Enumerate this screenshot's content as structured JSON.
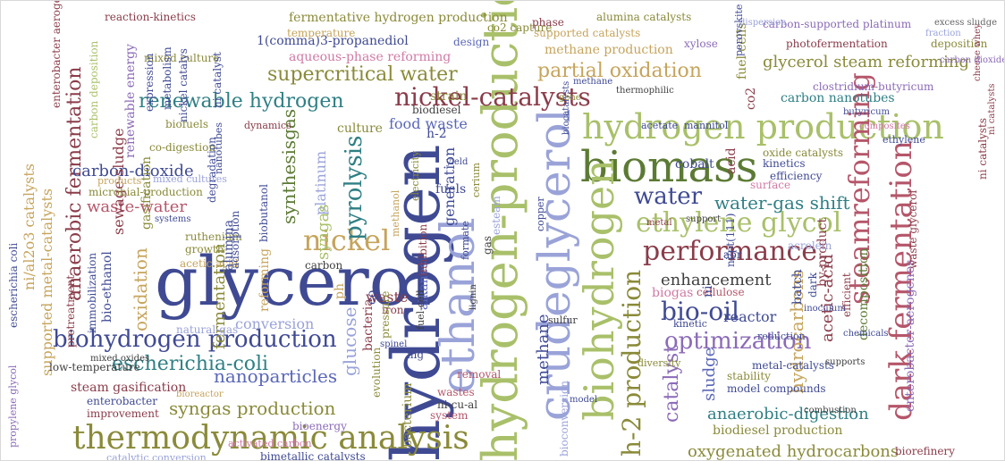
{
  "colors": {
    "navy": "#3f4a93",
    "blue": "#5a67b8",
    "teal": "#2f7f84",
    "olive": "#8a8a3a",
    "lime": "#a9c06a",
    "green": "#5c7a34",
    "maroon": "#8a3c4a",
    "red": "#b5566a",
    "pink": "#d07aa4",
    "purple": "#8b6bb7",
    "lavender": "#9aa3d8",
    "tan": "#c6a45c",
    "gray": "#666666",
    "darkgray": "#3f3f3f"
  },
  "words": [
    {
      "text": "glycerol",
      "color": "navy"
    },
    {
      "text": "hydrogen",
      "color": "navy"
    },
    {
      "text": "hydrogen-production",
      "color": "lime"
    },
    {
      "text": "biomass",
      "color": "green"
    },
    {
      "text": "ethanol",
      "color": "lavender"
    },
    {
      "text": "crudeglycerol",
      "color": "lavender"
    },
    {
      "text": "biohydrogen",
      "color": "lime"
    },
    {
      "text": "thermodynamic analysis",
      "color": "olive"
    },
    {
      "text": "hydrogen production",
      "color": "lime"
    },
    {
      "text": "nickel-catalysts",
      "color": "maroon"
    },
    {
      "text": "performance",
      "color": "maroon"
    },
    {
      "text": "ethylene glycol",
      "color": "lime"
    },
    {
      "text": "dark fermentation",
      "color": "red"
    },
    {
      "text": "steamreforming",
      "color": "red"
    },
    {
      "text": "biohydrogen production",
      "color": "navy"
    },
    {
      "text": "optimization",
      "color": "purple"
    },
    {
      "text": "bio-oil",
      "color": "navy"
    },
    {
      "text": "h-2 production",
      "color": "olive"
    },
    {
      "text": "nickel",
      "color": "tan"
    },
    {
      "text": "water",
      "color": "navy"
    },
    {
      "text": "catalyst",
      "color": "purple"
    },
    {
      "text": "escherichia-coli",
      "color": "teal"
    },
    {
      "text": "supercritical water",
      "color": "olive"
    },
    {
      "text": "renewable hydrogen",
      "color": "teal"
    },
    {
      "text": "partial oxidation",
      "color": "tan"
    },
    {
      "text": "anaerobic fermentation",
      "color": "maroon"
    },
    {
      "text": "water-gas shift",
      "color": "teal"
    },
    {
      "text": "syngas production",
      "color": "olive"
    },
    {
      "text": "nanoparticles",
      "color": "blue"
    },
    {
      "text": "glycerol steam reforming",
      "color": "olive"
    },
    {
      "text": "pyrolysis",
      "color": "teal"
    },
    {
      "text": "anaerobic-digestion",
      "color": "teal"
    },
    {
      "text": "oxygenated hydrocarbons",
      "color": "olive"
    },
    {
      "text": "enhancement",
      "color": "darkgray"
    },
    {
      "text": "carbon-dioxide",
      "color": "navy"
    },
    {
      "text": "waste-water",
      "color": "red"
    },
    {
      "text": "conversion",
      "color": "lavender"
    },
    {
      "text": "food waste",
      "color": "blue"
    },
    {
      "text": "synthesisgas",
      "color": "green"
    },
    {
      "text": "glucose",
      "color": "lavender"
    },
    {
      "text": "hydrocarbons",
      "color": "tan"
    },
    {
      "text": "methane",
      "color": "navy"
    },
    {
      "text": "sludge",
      "color": "blue"
    },
    {
      "text": "acetic-acid",
      "color": "maroon"
    },
    {
      "text": "biogas",
      "color": "pink"
    },
    {
      "text": "reactor",
      "color": "navy"
    },
    {
      "text": "biodiesel production",
      "color": "olive"
    },
    {
      "text": "steam gasification",
      "color": "maroon"
    },
    {
      "text": "carbon nanotubes",
      "color": "teal"
    },
    {
      "text": "methane production",
      "color": "tan"
    },
    {
      "text": "aqueous-phase reforming",
      "color": "pink"
    },
    {
      "text": "1(comma)3-propanediol",
      "color": "navy"
    },
    {
      "text": "supported metal-catalysts",
      "color": "tan"
    },
    {
      "text": "oxidation",
      "color": "tan"
    },
    {
      "text": "fermentation",
      "color": "olive"
    },
    {
      "text": "enterobacter-aerogenes",
      "color": "purple"
    },
    {
      "text": "decomposition",
      "color": "green"
    },
    {
      "text": "platinum",
      "color": "lavender"
    },
    {
      "text": "syngas",
      "color": "lime"
    },
    {
      "text": "sewage-sludge",
      "color": "maroon"
    },
    {
      "text": "renewable energy",
      "color": "purple"
    },
    {
      "text": "ni/al2o3 catalysts",
      "color": "tan"
    },
    {
      "text": "bio-ethanol",
      "color": "navy"
    },
    {
      "text": "reforming",
      "color": "tan"
    },
    {
      "text": "alkanes",
      "color": "blue"
    },
    {
      "text": "generation",
      "color": "navy"
    },
    {
      "text": "cobalt",
      "color": "navy"
    },
    {
      "text": "kinetics",
      "color": "navy"
    },
    {
      "text": "fuels",
      "color": "navy"
    },
    {
      "text": "waste",
      "color": "maroon"
    },
    {
      "text": "biodiesel",
      "color": "darkgray"
    },
    {
      "text": "strain",
      "color": "olive"
    },
    {
      "text": "culture",
      "color": "olive"
    },
    {
      "text": "oxide catalysts",
      "color": "olive"
    },
    {
      "text": "metal-catalysts",
      "color": "navy"
    },
    {
      "text": "model compounds",
      "color": "navy"
    },
    {
      "text": "bimetallic catalysts",
      "color": "navy"
    },
    {
      "text": "carbon-supported platinum",
      "color": "purple"
    },
    {
      "text": "supported catalysts",
      "color": "tan"
    },
    {
      "text": "alumina catalysts",
      "color": "olive"
    },
    {
      "text": "co2 capture",
      "color": "olive"
    },
    {
      "text": "photofermentation",
      "color": "maroon"
    },
    {
      "text": "microbial-production",
      "color": "olive"
    },
    {
      "text": "acetic acid",
      "color": "tan"
    },
    {
      "text": "fuel cells",
      "color": "olive"
    },
    {
      "text": "waste glycerol",
      "color": "maroon"
    },
    {
      "text": "biobutanol",
      "color": "navy"
    },
    {
      "text": "escherichia coli",
      "color": "navy"
    },
    {
      "text": "ruthenium",
      "color": "olive"
    },
    {
      "text": "growth",
      "color": "olive"
    },
    {
      "text": "adsorption",
      "color": "navy"
    },
    {
      "text": "co-digestion",
      "color": "olive"
    },
    {
      "text": "biofuels",
      "color": "olive"
    },
    {
      "text": "wastes",
      "color": "red"
    },
    {
      "text": "system",
      "color": "red"
    },
    {
      "text": "improvement",
      "color": "maroon"
    },
    {
      "text": "enterobacter",
      "color": "navy"
    },
    {
      "text": "low-temperature",
      "color": "darkgray"
    },
    {
      "text": "cellulose",
      "color": "red"
    },
    {
      "text": "mixed culture",
      "color": "olive"
    },
    {
      "text": "efficiency",
      "color": "navy"
    },
    {
      "text": "by-product",
      "color": "maroon"
    },
    {
      "text": "acrolein",
      "color": "lavender"
    },
    {
      "text": "batch",
      "color": "navy"
    },
    {
      "text": "bioenergy",
      "color": "purple"
    },
    {
      "text": "bacterium",
      "color": "olive"
    },
    {
      "text": "bacteria",
      "color": "maroon"
    },
    {
      "text": "ni-cu-al",
      "color": "darkgray"
    },
    {
      "text": "stability",
      "color": "olive"
    },
    {
      "text": "alumina",
      "color": "navy"
    },
    {
      "text": "immobilization",
      "color": "navy"
    },
    {
      "text": "pretreatment",
      "color": "maroon"
    },
    {
      "text": "gasification",
      "color": "olive"
    },
    {
      "text": "ni catalyst",
      "color": "navy"
    },
    {
      "text": "degradation",
      "color": "navy"
    },
    {
      "text": "nickel catalys",
      "color": "navy"
    },
    {
      "text": "metabolism",
      "color": "navy"
    },
    {
      "text": "expression",
      "color": "navy"
    },
    {
      "text": "carbon deposition",
      "color": "lime"
    },
    {
      "text": "enterobacter aerogenes",
      "color": "maroon"
    },
    {
      "text": "clostridium-butyricum",
      "color": "purple"
    },
    {
      "text": "xylose",
      "color": "purple"
    },
    {
      "text": "deposition",
      "color": "olive"
    },
    {
      "text": "excess sludge",
      "color": "gray"
    },
    {
      "text": "reaction-kinetics",
      "color": "maroon"
    },
    {
      "text": "phase",
      "color": "maroon"
    },
    {
      "text": "design",
      "color": "blue"
    },
    {
      "text": "h-2",
      "color": "navy"
    },
    {
      "text": "acid",
      "color": "maroon"
    },
    {
      "text": "co2",
      "color": "maroon"
    },
    {
      "text": "surface",
      "color": "pink"
    },
    {
      "text": "ni",
      "color": "navy"
    },
    {
      "text": "co",
      "color": "navy"
    },
    {
      "text": "gas",
      "color": "darkgray"
    },
    {
      "text": "carbon",
      "color": "darkgray"
    },
    {
      "text": "iron",
      "color": "maroon"
    },
    {
      "text": "mg",
      "color": "navy"
    },
    {
      "text": "ph",
      "color": "tan"
    },
    {
      "text": "apr",
      "color": "navy"
    },
    {
      "text": "inhibition",
      "color": "maroon"
    },
    {
      "text": "evolution",
      "color": "olive"
    },
    {
      "text": "pressure",
      "color": "olive"
    },
    {
      "text": "temperature",
      "color": "tan"
    },
    {
      "text": "natural-gas",
      "color": "lavender"
    },
    {
      "text": "removal",
      "color": "red"
    },
    {
      "text": "ni catalysts",
      "color": "maroon"
    },
    {
      "text": "propylene glycol",
      "color": "purple"
    },
    {
      "text": "nanotubes",
      "color": "navy"
    },
    {
      "text": "catalytic conversion",
      "color": "lavender"
    },
    {
      "text": "activated carbon",
      "color": "pink"
    },
    {
      "text": "ni/pt(111)",
      "color": "navy"
    },
    {
      "text": "bioconversion",
      "color": "lavender"
    },
    {
      "text": "methanol",
      "color": "tan"
    },
    {
      "text": "electricity",
      "color": "olive"
    },
    {
      "text": "diversity",
      "color": "olive"
    },
    {
      "text": "cerium",
      "color": "olive"
    },
    {
      "text": "fermentative hydrogen production",
      "color": "olive"
    },
    {
      "text": "reduction",
      "color": "navy"
    },
    {
      "text": "fuel-cell",
      "color": "darkgray"
    },
    {
      "text": "biorefinery",
      "color": "maroon"
    },
    {
      "text": "efficient",
      "color": "maroon"
    },
    {
      "text": "dark",
      "color": "navy"
    },
    {
      "text": "mixed cultures",
      "color": "lavender"
    },
    {
      "text": "products",
      "color": "tan"
    },
    {
      "text": "systems",
      "color": "navy"
    },
    {
      "text": "biocatalysts",
      "color": "navy"
    },
    {
      "text": "ethylene",
      "color": "navy"
    },
    {
      "text": "dynamics",
      "color": "maroon"
    },
    {
      "text": "esteam",
      "color": "lavender"
    },
    {
      "text": "formate",
      "color": "navy"
    },
    {
      "text": "copper",
      "color": "navy"
    },
    {
      "text": "sulfur",
      "color": "darkgray"
    },
    {
      "text": "lignin",
      "color": "darkgray"
    },
    {
      "text": "metal",
      "color": "maroon"
    },
    {
      "text": "support",
      "color": "darkgray"
    },
    {
      "text": "model",
      "color": "navy"
    },
    {
      "text": "perovskite",
      "color": "navy"
    },
    {
      "text": "butyricum",
      "color": "navy"
    },
    {
      "text": "fraction",
      "color": "lavender"
    },
    {
      "text": "composites",
      "color": "pink"
    },
    {
      "text": "kinetic",
      "color": "navy"
    },
    {
      "text": "spinel",
      "color": "navy"
    },
    {
      "text": "acetate",
      "color": "navy"
    },
    {
      "text": "mannitol",
      "color": "navy"
    },
    {
      "text": "inoculum",
      "color": "navy"
    },
    {
      "text": "chemicals",
      "color": "navy"
    },
    {
      "text": "gene",
      "color": "olive"
    },
    {
      "text": "yield",
      "color": "navy"
    },
    {
      "text": "dispersion",
      "color": "lavender"
    },
    {
      "text": "methane",
      "color": "navy"
    },
    {
      "text": "mixed oxides",
      "color": "darkgray"
    },
    {
      "text": "cheese whey",
      "color": "maroon"
    },
    {
      "text": "ni catalysts",
      "color": "maroon"
    },
    {
      "text": "carbon dioxide",
      "color": "purple"
    },
    {
      "text": "thermophilic",
      "color": "darkgray"
    },
    {
      "text": "bioreactor",
      "color": "tan"
    },
    {
      "text": "supports",
      "color": "darkgray"
    },
    {
      "text": "combustion",
      "color": "darkgray"
    }
  ]
}
